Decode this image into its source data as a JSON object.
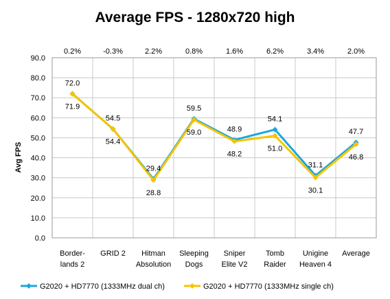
{
  "chart_data": {
    "type": "line",
    "title": "Average FPS - 1280x720 high",
    "ylabel": "Avg FPS",
    "xlabel": "",
    "ylim": [
      0,
      90
    ],
    "yticks": [
      "0.0",
      "10.0",
      "20.0",
      "30.0",
      "40.0",
      "50.0",
      "60.0",
      "70.0",
      "80.0",
      "90.0"
    ],
    "categories": [
      [
        "Border-",
        "lands 2"
      ],
      [
        "GRID 2"
      ],
      [
        "Hitman",
        "Absolution"
      ],
      [
        "Sleeping",
        "Dogs"
      ],
      [
        "Sniper",
        "Elite V2"
      ],
      [
        "Tomb",
        "Raider"
      ],
      [
        "Unigine",
        "Heaven 4"
      ],
      [
        "Average"
      ]
    ],
    "percent_labels": [
      "0.2%",
      "-0.3%",
      "2.2%",
      "0.8%",
      "1.6%",
      "6.2%",
      "3.4%",
      "2.0%"
    ],
    "series": [
      {
        "name": "G2020 + HD7770 (1333MHz dual ch)",
        "color": "#1ba7de",
        "values": [
          72.0,
          54.4,
          29.4,
          59.5,
          48.9,
          54.1,
          31.1,
          47.7
        ],
        "labels": [
          "72.0",
          "54.4",
          "29.4",
          "59.5",
          "48.9",
          "54.1",
          "31.1",
          "47.7"
        ]
      },
      {
        "name": "G2020 + HD7770 (1333MHz single ch)",
        "color": "#f5c400",
        "values": [
          71.9,
          54.5,
          28.8,
          59.0,
          48.2,
          51.0,
          30.1,
          46.8
        ],
        "labels": [
          "71.9",
          "54.5",
          "28.8",
          "59.0",
          "48.2",
          "51.0",
          "30.1",
          "46.8"
        ]
      }
    ],
    "grid": true,
    "legend_position": "bottom"
  }
}
